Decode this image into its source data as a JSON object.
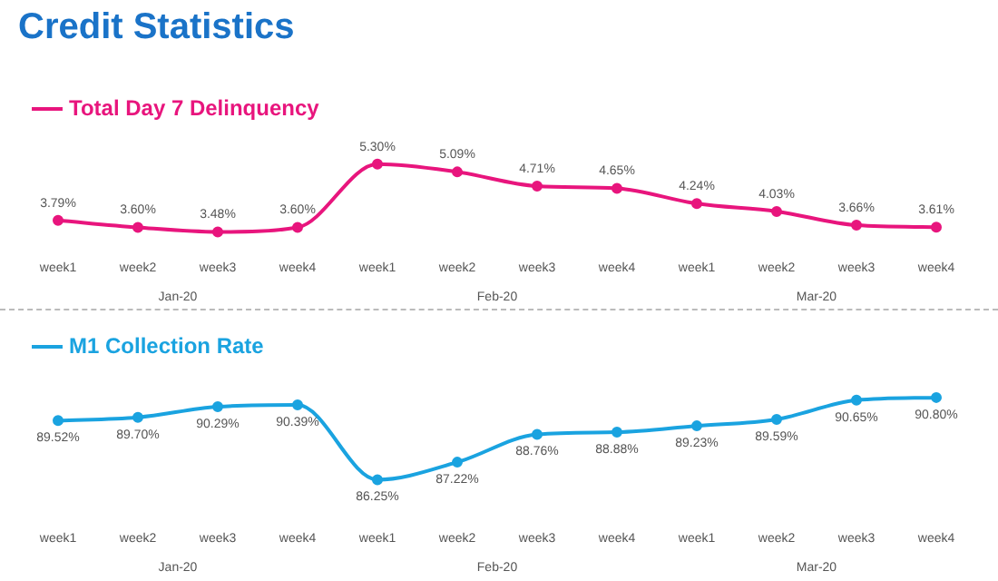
{
  "chart_data": [
    {
      "type": "line",
      "title": "Credit Statistics",
      "categories": [
        "week1",
        "week2",
        "week3",
        "week4",
        "week1",
        "week2",
        "week3",
        "week4",
        "week1",
        "week2",
        "week3",
        "week4"
      ],
      "series": [
        {
          "name": "Total Day 7 Delinquency",
          "color": "#e8157d",
          "values": [
            3.79,
            3.6,
            3.48,
            3.6,
            5.3,
            5.09,
            4.71,
            4.65,
            4.24,
            4.03,
            3.66,
            3.61
          ],
          "value_labels": [
            "3.79%",
            "3.60%",
            "3.48%",
            "3.60%",
            "5.30%",
            "5.09%",
            "4.71%",
            "4.65%",
            "4.24%",
            "4.03%",
            "3.66%",
            "3.61%"
          ]
        }
      ],
      "annotations": [
        "Jan-20",
        "Feb-20",
        "Mar-20"
      ],
      "legend": "top left",
      "marker": "circle",
      "grid": false,
      "tick_labels": "x"
    },
    {
      "type": "line",
      "categories": [
        "week1",
        "week2",
        "week3",
        "week4",
        "week1",
        "week2",
        "week3",
        "week4",
        "week1",
        "week2",
        "week3",
        "week4"
      ],
      "series": [
        {
          "name": "M1 Collection Rate",
          "color": "#1aa3e0",
          "values": [
            89.52,
            89.7,
            90.29,
            90.39,
            86.25,
            87.22,
            88.76,
            88.88,
            89.23,
            89.59,
            90.65,
            90.8
          ],
          "value_labels": [
            "89.52%",
            "89.70%",
            "90.29%",
            "90.39%",
            "86.25%",
            "87.22%",
            "88.76%",
            "88.88%",
            "89.23%",
            "89.59%",
            "90.65%",
            "90.80%"
          ]
        }
      ],
      "annotations": [
        "Jan-20",
        "Feb-20",
        "Mar-20"
      ],
      "legend": "top left",
      "marker": "circle",
      "grid": false,
      "tick_labels": "x"
    }
  ]
}
